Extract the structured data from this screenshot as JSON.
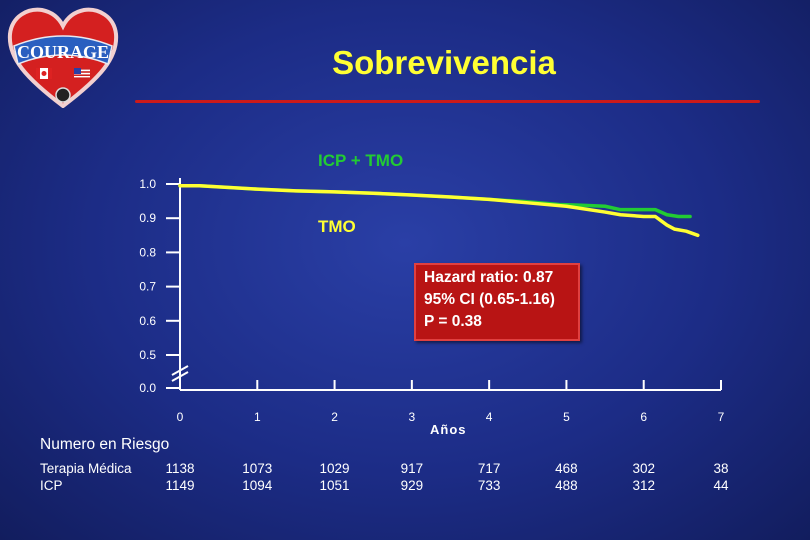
{
  "logo": {
    "text": "COURAGE"
  },
  "title": "Sobrevivencia",
  "colors": {
    "background": "#1c2c86",
    "title": "#ffff33",
    "rule": "#cc1a1a",
    "pci_tmo": "#22cc33",
    "tmo": "#ffff33",
    "axis": "#ffffff",
    "hazard_box": "#b81414"
  },
  "chart_data": {
    "type": "line",
    "xlabel": "Años",
    "ylabel": "",
    "x_ticks": [
      "0",
      "1",
      "2",
      "3",
      "4",
      "5",
      "6",
      "7"
    ],
    "y_ticks": [
      "1.0",
      "0.9",
      "0.8",
      "0.7",
      "0.6",
      "0.5",
      "0.0"
    ],
    "xlim": [
      0,
      7
    ],
    "ylim": [
      0.5,
      1.0
    ],
    "axis_break": "0.0–0.5",
    "grid": false,
    "series": [
      {
        "name": "ICP + TMO",
        "color": "#22cc33",
        "x": [
          0,
          0.25,
          1,
          1.5,
          2,
          2.5,
          3,
          3.5,
          4,
          4.5,
          4.9,
          5.2,
          5.5,
          5.7,
          6.0,
          6.15,
          6.3,
          6.45,
          6.6
        ],
        "y": [
          0.995,
          0.995,
          0.985,
          0.98,
          0.977,
          0.973,
          0.968,
          0.962,
          0.955,
          0.948,
          0.94,
          0.938,
          0.935,
          0.925,
          0.925,
          0.925,
          0.91,
          0.905,
          0.905
        ]
      },
      {
        "name": "TMO",
        "color": "#ffff33",
        "x": [
          0,
          0.25,
          1,
          1.5,
          2,
          2.5,
          3,
          3.5,
          4,
          4.5,
          5,
          5.5,
          5.7,
          6.0,
          6.15,
          6.3,
          6.4,
          6.55,
          6.7
        ],
        "y": [
          0.995,
          0.995,
          0.985,
          0.98,
          0.977,
          0.973,
          0.968,
          0.962,
          0.955,
          0.945,
          0.935,
          0.918,
          0.91,
          0.905,
          0.905,
          0.88,
          0.868,
          0.862,
          0.85
        ]
      }
    ],
    "annotations": {
      "pci_label": "ICP + TMO",
      "tmo_label": "TMO",
      "hazard": [
        "Hazard ratio: 0.87",
        "95% CI (0.65-1.16)",
        "P = 0.38"
      ]
    }
  },
  "risk_table": {
    "title": "Numero en Riesgo",
    "rows": [
      {
        "label": "Terapia Médica",
        "values": [
          "1138",
          "1073",
          "1029",
          "917",
          "717",
          "468",
          "302",
          "38"
        ]
      },
      {
        "label": "ICP",
        "values": [
          "1149",
          "1094",
          "1051",
          "929",
          "733",
          "488",
          "312",
          "44"
        ]
      }
    ]
  }
}
